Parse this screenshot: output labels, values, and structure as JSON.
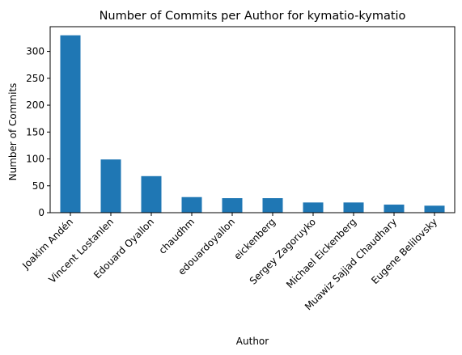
{
  "chart_data": {
    "type": "bar",
    "title": "Number of Commits per Author for kymatio-kymatio",
    "xlabel": "Author",
    "ylabel": "Number of Commits",
    "categories": [
      "Joakim Andén",
      "Vincent Lostanlen",
      "Edouard Oyallon",
      "chaudhm",
      "edouardoyallon",
      "eickenberg",
      "Sergey Zagoruyko",
      "Michael Eickenberg",
      "Muawiz Sajjad Chaudhary",
      "Eugene Belilovsky"
    ],
    "values": [
      330,
      99,
      68,
      29,
      27,
      27,
      19,
      19,
      15,
      13
    ],
    "ylim": [
      0,
      346
    ],
    "yticks": [
      0,
      50,
      100,
      150,
      200,
      250,
      300
    ],
    "grid": false,
    "legend": "none",
    "bar_color": "#1f77b4"
  }
}
